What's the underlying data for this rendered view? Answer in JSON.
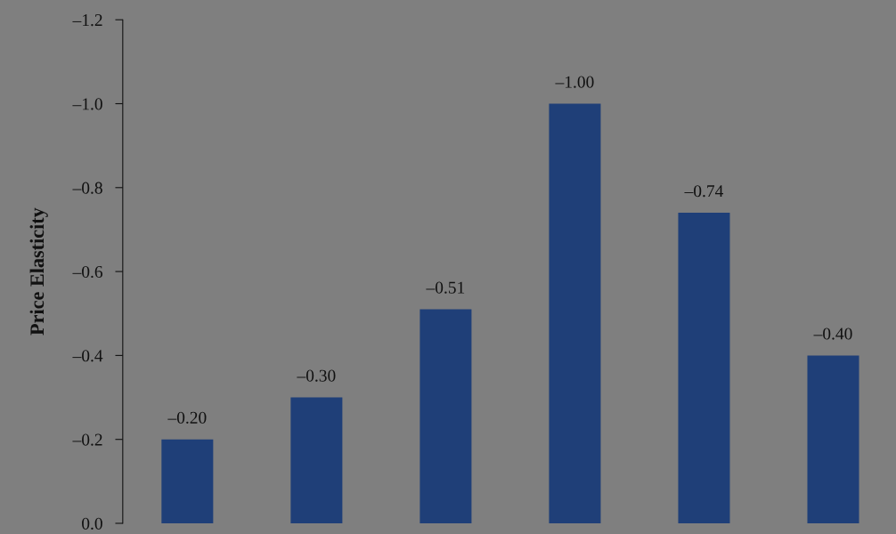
{
  "chart_data": {
    "type": "bar",
    "ylabel": "Price Elasticity",
    "categories": [
      null,
      null,
      null,
      null,
      null,
      null
    ],
    "values": [
      -0.2,
      -0.3,
      -0.51,
      -1.0,
      -0.74,
      -0.4
    ],
    "value_labels": [
      "–0.20",
      "–0.30",
      "–0.51",
      "–1.00",
      "–0.74",
      "–0.40"
    ],
    "color": "#1f3f78",
    "ylim": [
      0,
      -1.2
    ],
    "yticks": [
      {
        "value": 0,
        "label": "0.0"
      },
      {
        "value": -0.2,
        "label": "–0.2"
      },
      {
        "value": -0.4,
        "label": "–0.4"
      },
      {
        "value": -0.6,
        "label": "–0.6"
      },
      {
        "value": -0.8,
        "label": "–0.8"
      },
      {
        "value": -1.0,
        "label": "–1.0"
      },
      {
        "value": -1.2,
        "label": "–1.2"
      }
    ],
    "grid": false
  }
}
